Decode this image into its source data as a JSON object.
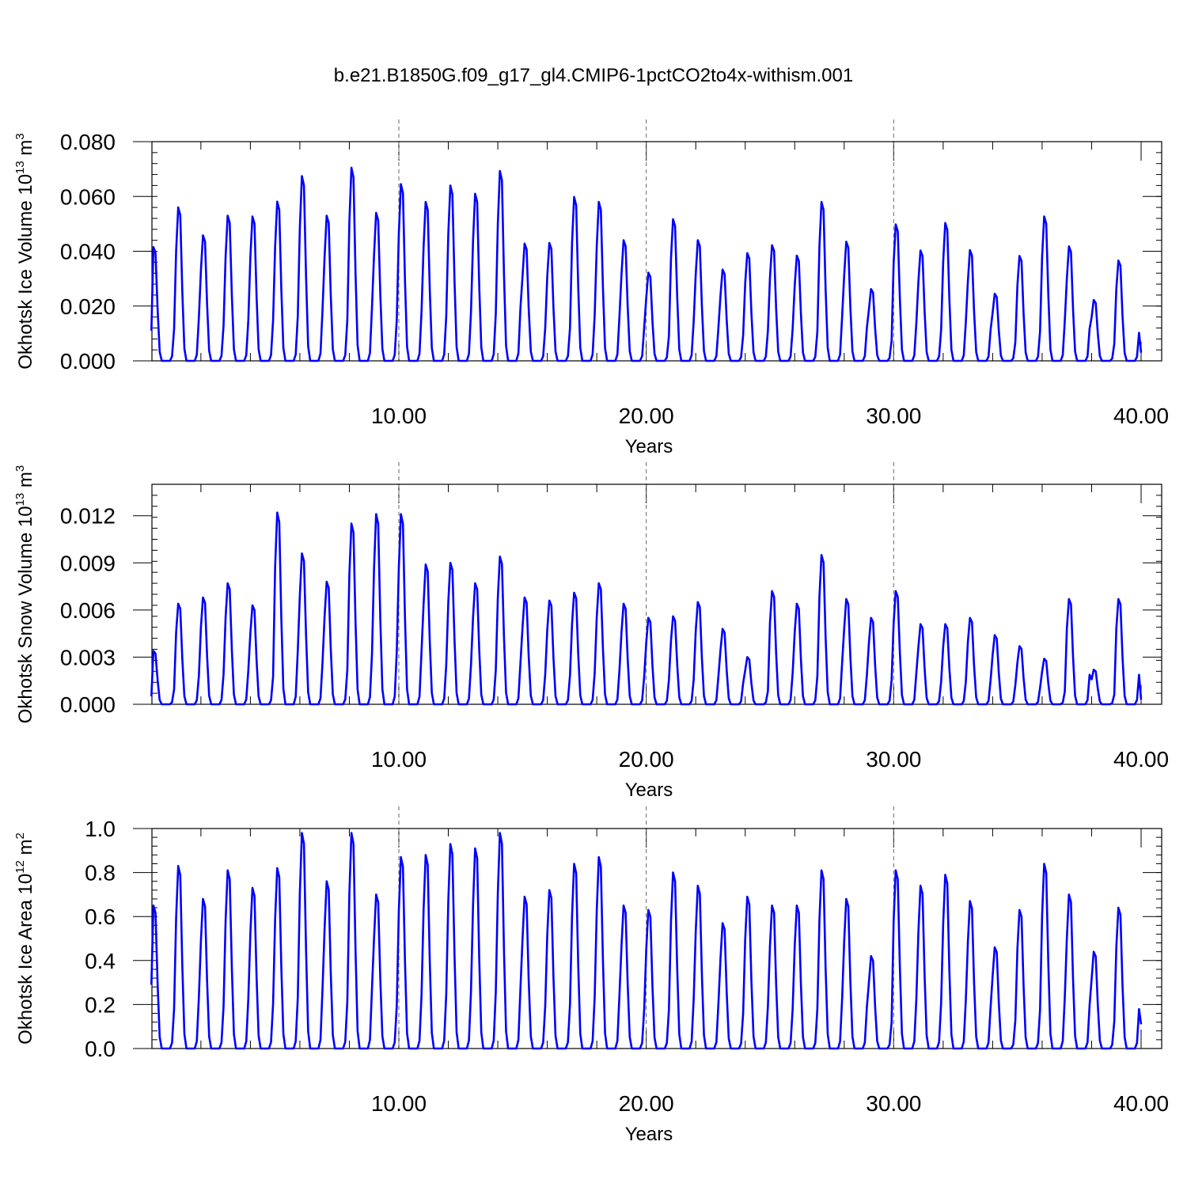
{
  "title": "b.e21.B1850G.f09_g17_gl4.CMIP6-1pctCO2to4x-withism.001",
  "line_color": "#0000ff",
  "chart_data": [
    {
      "type": "line",
      "ylabel": {
        "prefix": "Okhotsk Ice Volume 10",
        "exp": "13",
        "unit": " m",
        "unit_exp": "3"
      },
      "xlabel": "Years",
      "xlim": [
        0,
        41
      ],
      "ylim": [
        0,
        0.08
      ],
      "xticks": [
        "10.00",
        "20.00",
        "30.00",
        "40.00"
      ],
      "yticks": [
        "0.000",
        "0.020",
        "0.040",
        "0.060",
        "0.080"
      ],
      "grid": "dashed vertical lines at x = 10, 20, 30",
      "series": [
        {
          "peaks": [
            0.0415,
            0.056,
            0.0458,
            0.053,
            0.0527,
            0.0581,
            0.0674,
            0.053,
            0.0705,
            0.054,
            0.0645,
            0.058,
            0.064,
            0.061,
            0.0693,
            0.0428,
            0.043,
            0.0598,
            0.058,
            0.044,
            0.0322,
            0.0517,
            0.044,
            0.0333,
            0.0393,
            0.0422,
            0.0384,
            0.058,
            0.0435,
            0.0262,
            0.0498,
            0.0403,
            0.0503,
            0.0404,
            0.0245,
            0.0383,
            0.0527,
            0.0418,
            0.0222,
            0.0366
          ],
          "start_value": 0.011,
          "end_value": 0.003
        }
      ]
    },
    {
      "type": "line",
      "ylabel": {
        "prefix": "Okhotsk Snow Volume 10",
        "exp": "13",
        "unit": " m",
        "unit_exp": "3"
      },
      "xlabel": "Years",
      "xlim": [
        0,
        41
      ],
      "ylim": [
        0,
        0.014
      ],
      "xticks": [
        "10.00",
        "20.00",
        "30.00",
        "40.00"
      ],
      "yticks": [
        "0.000",
        "0.003",
        "0.006",
        "0.009",
        "0.012"
      ],
      "grid": "dashed vertical lines at x = 10, 20, 30",
      "series": [
        {
          "peaks": [
            0.0034,
            0.0064,
            0.0068,
            0.0077,
            0.0063,
            0.0122,
            0.0096,
            0.0078,
            0.0115,
            0.0121,
            0.0121,
            0.0089,
            0.009,
            0.0077,
            0.0094,
            0.0068,
            0.0066,
            0.0071,
            0.0077,
            0.0064,
            0.0055,
            0.0056,
            0.0065,
            0.0048,
            0.003,
            0.0072,
            0.0064,
            0.0095,
            0.0067,
            0.0055,
            0.0072,
            0.0051,
            0.0051,
            0.0055,
            0.0044,
            0.0037,
            0.0029,
            0.0067,
            0.0022,
            0.0067
          ],
          "start_value": 0.0005,
          "end_value": 0.0003
        }
      ]
    },
    {
      "type": "line",
      "ylabel": {
        "prefix": "Okhotsk Ice Area 10",
        "exp": "12",
        "unit": " m",
        "unit_exp": "2"
      },
      "xlabel": "Years",
      "xlim": [
        0,
        41
      ],
      "ylim": [
        0,
        1.0
      ],
      "xticks": [
        "10.00",
        "20.00",
        "30.00",
        "40.00"
      ],
      "yticks": [
        "0.0",
        "0.2",
        "0.4",
        "0.6",
        "0.8",
        "1.0"
      ],
      "grid": "dashed vertical lines at x = 10, 20, 30",
      "series": [
        {
          "peaks": [
            0.65,
            0.83,
            0.68,
            0.81,
            0.73,
            0.82,
            0.98,
            0.76,
            0.98,
            0.7,
            0.87,
            0.88,
            0.93,
            0.91,
            0.98,
            0.69,
            0.72,
            0.84,
            0.87,
            0.65,
            0.63,
            0.8,
            0.74,
            0.57,
            0.69,
            0.65,
            0.65,
            0.81,
            0.68,
            0.42,
            0.81,
            0.74,
            0.79,
            0.67,
            0.46,
            0.63,
            0.84,
            0.7,
            0.44,
            0.64
          ],
          "start_value": 0.29,
          "end_value": 0.11
        }
      ]
    }
  ]
}
